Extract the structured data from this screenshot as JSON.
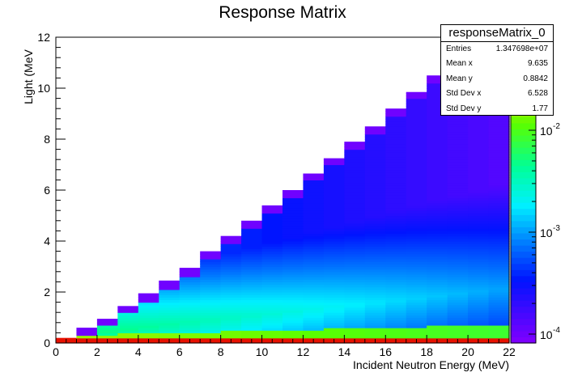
{
  "chart_data": {
    "type": "heatmap",
    "title": "Response Matrix",
    "xlabel": "Incident Neutron Energy (MeV)",
    "ylabel": "Light (MeV",
    "xlim": [
      0,
      22
    ],
    "ylim": [
      0,
      12
    ],
    "x_ticks": [
      "0",
      "2",
      "4",
      "6",
      "8",
      "10",
      "12",
      "14",
      "16",
      "18",
      "20",
      "22"
    ],
    "y_ticks": [
      "0",
      "2",
      "4",
      "6",
      "8",
      "10",
      "12"
    ],
    "bin_width": 1,
    "column_edges": [
      0.2,
      0.6,
      0.95,
      1.45,
      1.95,
      2.45,
      2.95,
      3.6,
      4.2,
      4.8,
      5.4,
      6.0,
      6.65,
      7.25,
      7.9,
      8.5,
      9.2,
      9.85,
      10.5,
      11.2,
      11.85,
      12.5
    ],
    "colorbar": {
      "scale": "log",
      "tick_labels": [
        "10",
        "10",
        "10"
      ],
      "tick_exponents": [
        "-4",
        "-3",
        "-2"
      ]
    },
    "legend": "top-right stats box"
  },
  "stats": {
    "title": "responseMatrix_0",
    "rows": [
      {
        "label": "Entries",
        "value": "1.347698e+07"
      },
      {
        "label": "Mean x",
        "value": "9.635"
      },
      {
        "label": "Mean y",
        "value": "0.8842"
      },
      {
        "label": "Std Dev x",
        "value": "6.528"
      },
      {
        "label": "Std Dev y",
        "value": "1.77"
      }
    ]
  }
}
